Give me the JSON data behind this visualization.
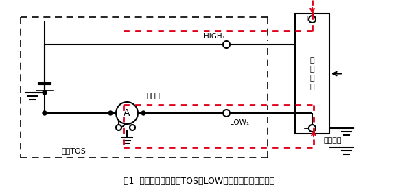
{
  "fig_width": 5.8,
  "fig_height": 2.86,
  "dpi": 100,
  "bg_color": "#ffffff",
  "line_color": "#000000",
  "red_color": "#e0001b",
  "gray_color": "#808080",
  "caption": "图1  试验对象通过定制TOS的LOW侧电缆和地线形成短路",
  "label_HIGH": "HIGH₁",
  "label_LOW": "LOW₁",
  "label_ammeter": "电流计",
  "label_TOS": "定制TOS",
  "label_DUT": "试验\n对\n象",
  "label_current_path": "电流路径"
}
